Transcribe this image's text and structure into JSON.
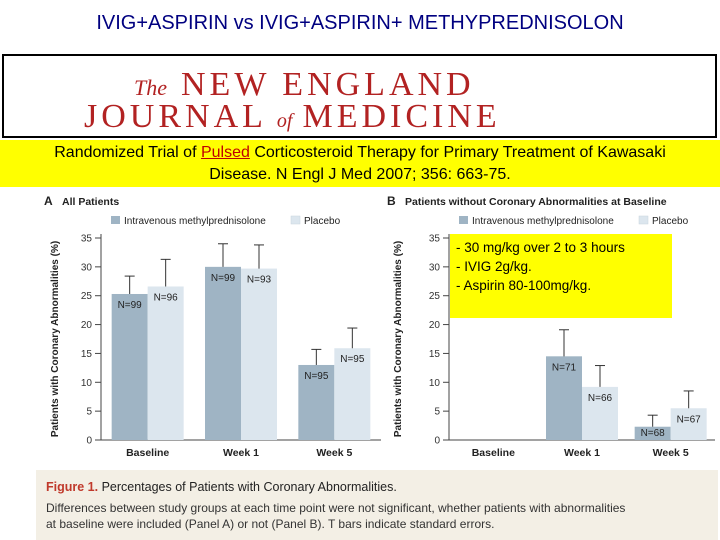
{
  "slide_title": "IVIG+ASPIRIN vs IVIG+ASPIRIN+ METHYPREDNISOLON",
  "journal": {
    "the": "The",
    "line1": "NEW ENGLAND",
    "line2a": "JOURNAL",
    "of": "of",
    "line2b": "MEDICINE"
  },
  "citation": {
    "part1": "Randomized Trial of ",
    "highlight": "Pulsed",
    "part2": " Corticosteroid Therapy for Primary Treatment of Kawasaki",
    "line2": "Disease. N Engl J Med 2007; 356: 663-75."
  },
  "note": {
    "lines": [
      "- 30 mg/kg over 2 to 3 hours",
      "-  IVIG 2g/kg.",
      "- Aspirin 80-100mg/kg."
    ]
  },
  "colors": {
    "ivmp": "#9fb4c4",
    "placebo": "#dce6ee",
    "accent": "#c0392b"
  },
  "chart_data": [
    {
      "type": "bar",
      "panel": "A",
      "title": "All Patients",
      "ylabel": "Patients with Coronary Abnormalities (%)",
      "ylim": [
        0,
        35
      ],
      "yticks": [
        "0",
        "5",
        "10",
        "15",
        "20",
        "25",
        "30",
        "35"
      ],
      "categories": [
        "Baseline",
        "Week 1",
        "Week 5"
      ],
      "legend": [
        "Intravenous methylprednisolone",
        "Placebo"
      ],
      "series": [
        {
          "name": "Intravenous methylprednisolone",
          "values": [
            25.3,
            30,
            13
          ],
          "errors": [
            3.1,
            4,
            2.7
          ],
          "labels": [
            "N=99",
            "N=99",
            "N=95"
          ]
        },
        {
          "name": "Placebo",
          "values": [
            26.6,
            29.7,
            15.9
          ],
          "errors": [
            4.7,
            4.1,
            3.5
          ],
          "labels": [
            "N=96",
            "N=93",
            "N=95"
          ]
        }
      ]
    },
    {
      "type": "bar",
      "panel": "B",
      "title": "Patients without Coronary Abnormalities at Baseline",
      "ylabel": "Patients with Coronary Abnormalities (%)",
      "ylim": [
        0,
        35
      ],
      "yticks": [
        "0",
        "5",
        "10",
        "15",
        "20",
        "25",
        "30",
        "35"
      ],
      "categories": [
        "Baseline",
        "Week 1",
        "Week 5"
      ],
      "legend": [
        "Intravenous methylprednisolone",
        "Placebo"
      ],
      "series": [
        {
          "name": "Intravenous methylprednisolone",
          "values": [
            0,
            14.5,
            2.3
          ],
          "errors": [
            0,
            4.6,
            2
          ],
          "labels": [
            "",
            "N=71",
            "N=68"
          ]
        },
        {
          "name": "Placebo",
          "values": [
            0,
            9.2,
            5.5
          ],
          "errors": [
            0,
            3.7,
            3
          ],
          "labels": [
            "",
            "N=66",
            "N=67"
          ]
        }
      ]
    }
  ],
  "caption": {
    "figure": "Figure 1.",
    "title": " Percentages of Patients with Coronary Abnormalities.",
    "body1": "Differences between study groups at each time point were not significant, whether patients with abnormalities",
    "body2": "at baseline were included (Panel A) or not (Panel B). T bars indicate standard errors."
  }
}
